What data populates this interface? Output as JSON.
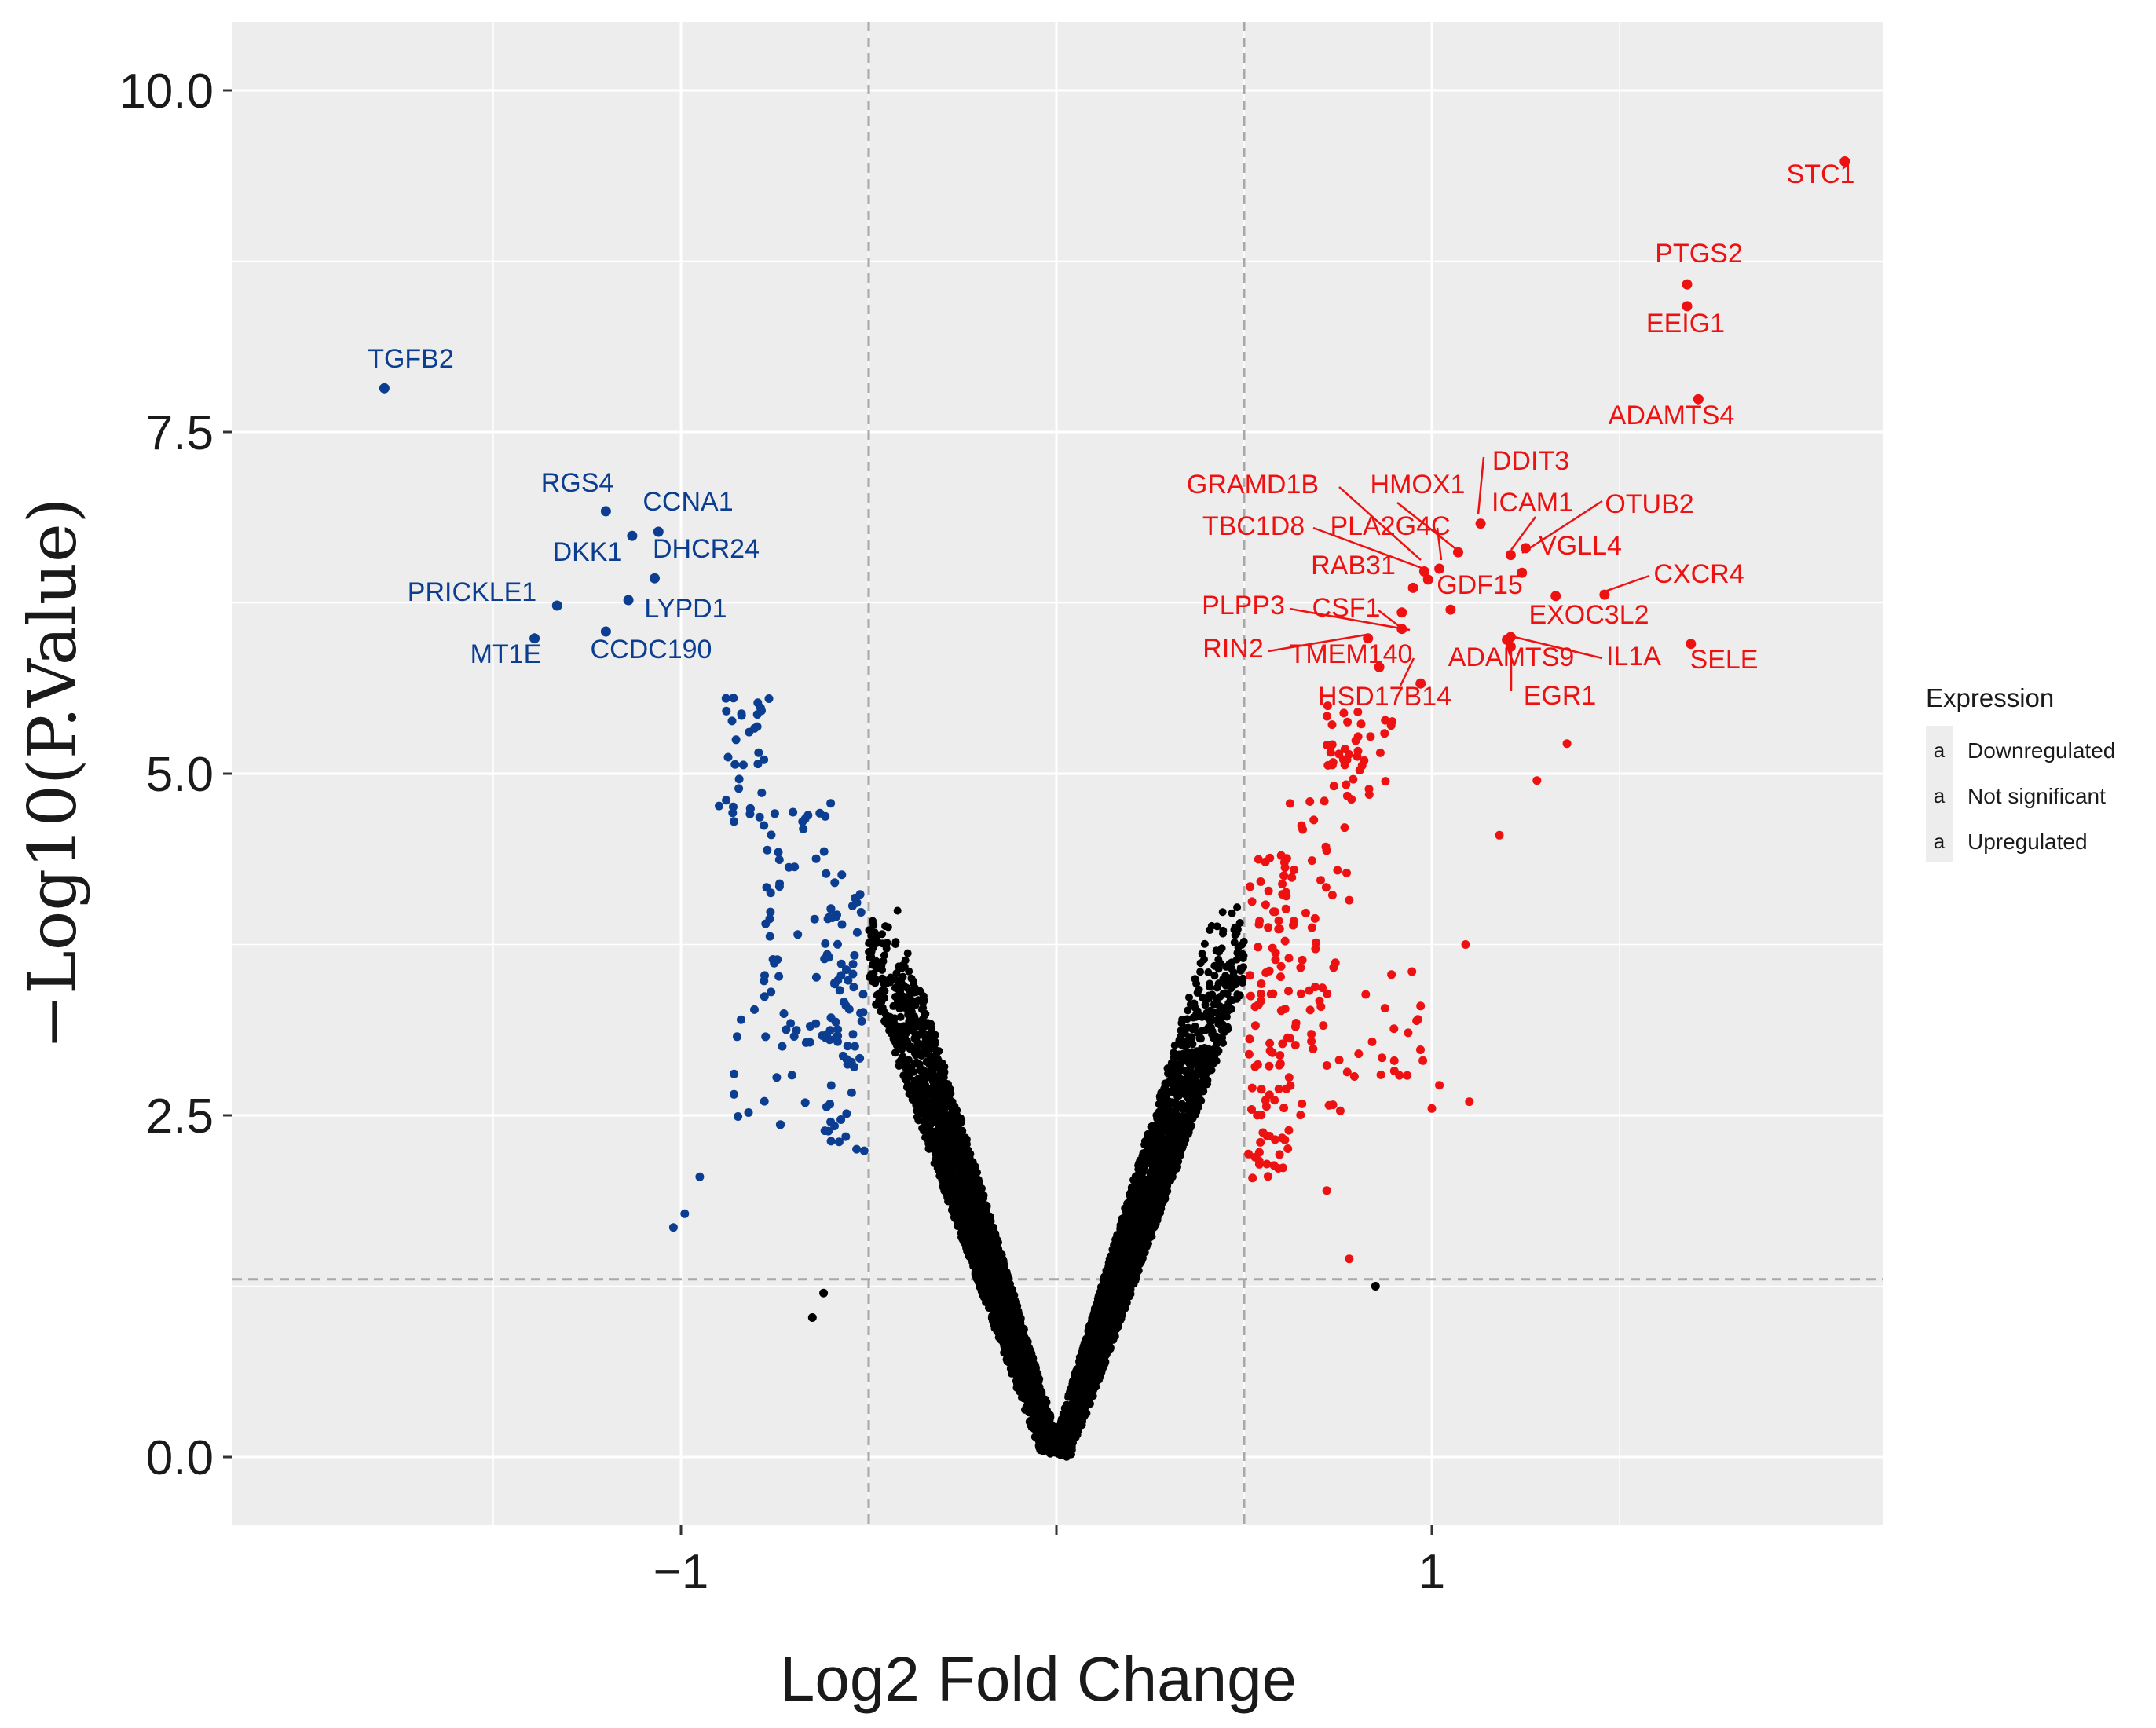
{
  "chart_data": {
    "type": "scatter",
    "title": "",
    "xlabel": "Log2 Fold Change",
    "ylabel": "−Log10(P.Value)",
    "xlim": [
      -2.2,
      2.2
    ],
    "ylim": [
      -0.5,
      10.5
    ],
    "x_ticks": [
      -1,
      0,
      1
    ],
    "x_tick_labels": [
      "−1",
      "",
      "1"
    ],
    "y_ticks": [
      0,
      2.5,
      5,
      7.5,
      10
    ],
    "y_tick_labels": [
      "0.0",
      "2.5",
      "5.0",
      "7.5",
      "10.0"
    ],
    "thresholds": {
      "log2fc": [
        -0.5,
        0.5
      ],
      "neg_log10_p": 1.3
    },
    "grid": true,
    "colors": {
      "Downregulated": "#0b3d91",
      "Not significant": "#000000",
      "Upregulated": "#ee1111"
    },
    "legend": {
      "title": "Expression",
      "position": "right",
      "key_glyph": "a",
      "entries": [
        "Downregulated",
        "Not significant",
        "Upregulated"
      ]
    },
    "labeled_points": [
      {
        "gene": "STC1",
        "x": 2.1,
        "y": 9.48,
        "group": "Upregulated"
      },
      {
        "gene": "PTGS2",
        "x": 1.68,
        "y": 8.58,
        "group": "Upregulated"
      },
      {
        "gene": "EEIG1",
        "x": 1.68,
        "y": 8.42,
        "group": "Upregulated"
      },
      {
        "gene": "ADAMTS4",
        "x": 1.71,
        "y": 7.74,
        "group": "Upregulated"
      },
      {
        "gene": "DDIT3",
        "x": 1.13,
        "y": 6.83,
        "group": "Upregulated"
      },
      {
        "gene": "HMOX1",
        "x": 1.07,
        "y": 6.62,
        "group": "Upregulated"
      },
      {
        "gene": "GRAMD1B",
        "x": 0.98,
        "y": 6.48,
        "group": "Upregulated"
      },
      {
        "gene": "ICAM1",
        "x": 1.21,
        "y": 6.6,
        "group": "Upregulated"
      },
      {
        "gene": "OTUB2",
        "x": 1.25,
        "y": 6.65,
        "group": "Upregulated"
      },
      {
        "gene": "TBC1D8",
        "x": 0.99,
        "y": 6.42,
        "group": "Upregulated"
      },
      {
        "gene": "PLA2G4C",
        "x": 1.02,
        "y": 6.5,
        "group": "Upregulated"
      },
      {
        "gene": "VGLL4",
        "x": 1.24,
        "y": 6.47,
        "group": "Upregulated"
      },
      {
        "gene": "RAB31",
        "x": 0.95,
        "y": 6.36,
        "group": "Upregulated"
      },
      {
        "gene": "GDF15",
        "x": 1.05,
        "y": 6.2,
        "group": "Upregulated"
      },
      {
        "gene": "CXCR4",
        "x": 1.46,
        "y": 6.31,
        "group": "Upregulated"
      },
      {
        "gene": "PLPP3",
        "x": 0.92,
        "y": 6.06,
        "group": "Upregulated"
      },
      {
        "gene": "CSF1",
        "x": 0.92,
        "y": 6.18,
        "group": "Upregulated"
      },
      {
        "gene": "EXOC3L2",
        "x": 1.33,
        "y": 6.3,
        "group": "Upregulated"
      },
      {
        "gene": "RIN2",
        "x": 0.83,
        "y": 5.99,
        "group": "Upregulated"
      },
      {
        "gene": "TMEM140",
        "x": 0.86,
        "y": 5.78,
        "group": "Upregulated"
      },
      {
        "gene": "ADAMTS9",
        "x": 1.2,
        "y": 5.98,
        "group": "Upregulated"
      },
      {
        "gene": "IL1A",
        "x": 1.21,
        "y": 6.0,
        "group": "Upregulated"
      },
      {
        "gene": "SELE",
        "x": 1.69,
        "y": 5.95,
        "group": "Upregulated"
      },
      {
        "gene": "HSD17B14",
        "x": 0.97,
        "y": 5.66,
        "group": "Upregulated"
      },
      {
        "gene": "EGR1",
        "x": 1.21,
        "y": 5.93,
        "group": "Upregulated"
      },
      {
        "gene": "TGFB2",
        "x": -1.79,
        "y": 7.82,
        "group": "Downregulated"
      },
      {
        "gene": "RGS4",
        "x": -1.2,
        "y": 6.92,
        "group": "Downregulated"
      },
      {
        "gene": "CCNA1",
        "x": -1.13,
        "y": 6.74,
        "group": "Downregulated"
      },
      {
        "gene": "DKK1",
        "x": -1.06,
        "y": 6.77,
        "group": "Downregulated"
      },
      {
        "gene": "DHCR24",
        "x": -1.07,
        "y": 6.43,
        "group": "Downregulated"
      },
      {
        "gene": "PRICKLE1",
        "x": -1.33,
        "y": 6.23,
        "group": "Downregulated"
      },
      {
        "gene": "LYPD1",
        "x": -1.14,
        "y": 6.27,
        "group": "Downregulated"
      },
      {
        "gene": "MT1E",
        "x": -1.39,
        "y": 5.99,
        "group": "Downregulated"
      },
      {
        "gene": "CCDC190",
        "x": -1.2,
        "y": 6.04,
        "group": "Downregulated"
      }
    ]
  }
}
